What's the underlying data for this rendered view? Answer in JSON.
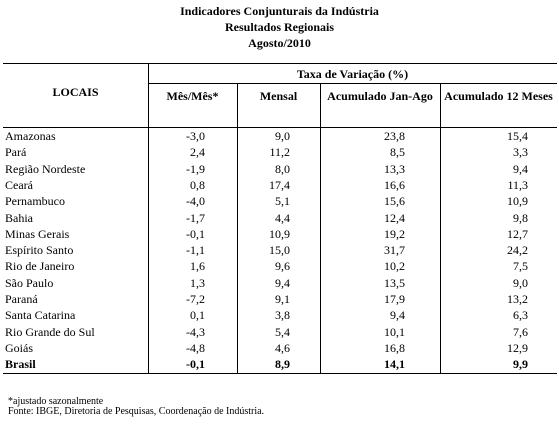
{
  "header": {
    "title": "Indicadores Conjunturais da Indústria",
    "subtitle": "Resultados Regionais",
    "date": "Agosto/2010"
  },
  "table": {
    "locals_header": "LOCAIS",
    "group_header": "Taxa de Variação (%)",
    "columns": [
      "Mês/Mês*",
      "Mensal",
      "Acumulado Jan-Ago",
      "Acumulado 12 Meses"
    ],
    "rows": [
      [
        "Amazonas",
        "-3,0",
        "9,0",
        "23,8",
        "15,4"
      ],
      [
        "Pará",
        "2,4",
        "11,2",
        "8,5",
        "3,3"
      ],
      [
        "Região Nordeste",
        "-1,9",
        "8,0",
        "13,3",
        "9,4"
      ],
      [
        "Ceará",
        "0,8",
        "17,4",
        "16,6",
        "11,3"
      ],
      [
        "Pernambuco",
        "-4,0",
        "5,1",
        "15,6",
        "10,9"
      ],
      [
        "Bahia",
        "-1,7",
        "4,4",
        "12,4",
        "9,8"
      ],
      [
        "Minas Gerais",
        "-0,1",
        "10,9",
        "19,2",
        "12,7"
      ],
      [
        "Espírito Santo",
        "-1,1",
        "15,0",
        "31,7",
        "24,2"
      ],
      [
        "Rio de Janeiro",
        "1,6",
        "9,6",
        "10,2",
        "7,5"
      ],
      [
        "São Paulo",
        "1,3",
        "9,4",
        "13,5",
        "9,0"
      ],
      [
        "Paraná",
        "-7,2",
        "9,1",
        "17,9",
        "13,2"
      ],
      [
        "Santa Catarina",
        "0,1",
        "3,8",
        "9,4",
        "6,3"
      ],
      [
        "Rio Grande do Sul",
        "-4,3",
        "5,4",
        "10,1",
        "7,6"
      ],
      [
        "Goiás",
        "-4,8",
        "4,6",
        "16,8",
        "12,9"
      ],
      [
        "Brasil",
        "-0,1",
        "8,9",
        "14,1",
        "9,9"
      ]
    ]
  },
  "footnotes": [
    "*ajustado sazonalmente",
    "Fonte: IBGE, Diretoria de Pesquisas, Coordenação de Indústria."
  ]
}
